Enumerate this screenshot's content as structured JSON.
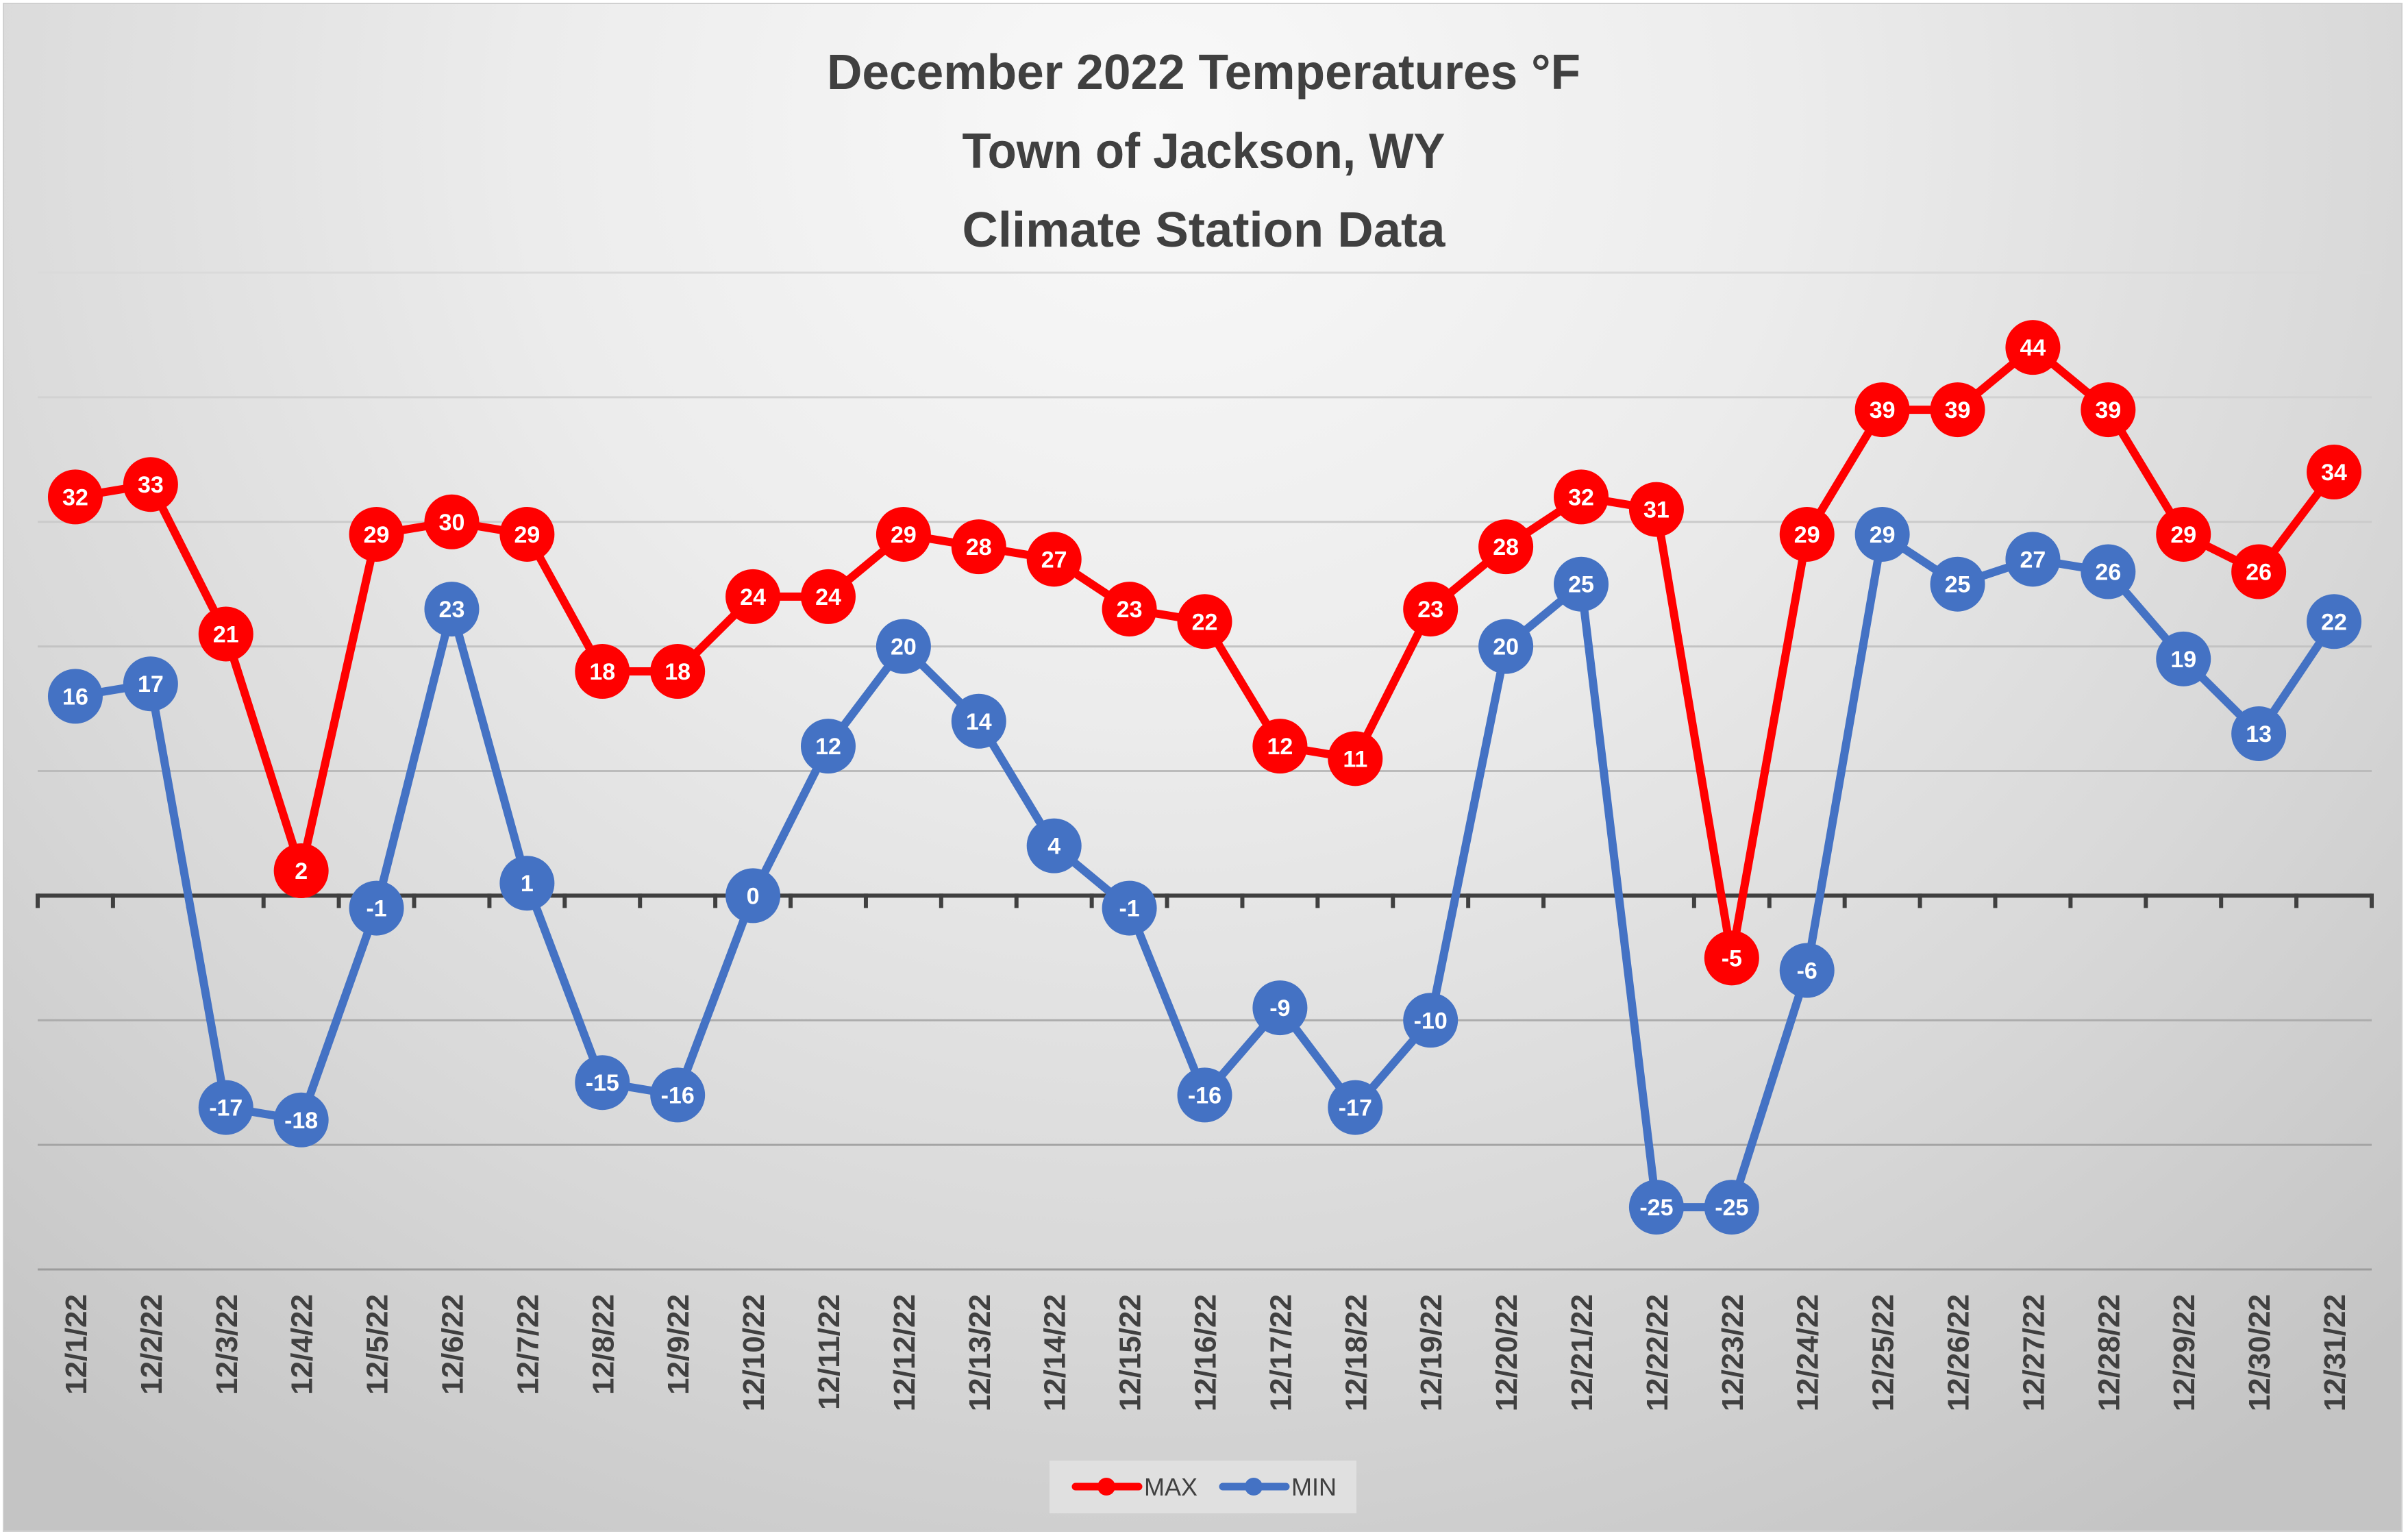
{
  "chart_data": {
    "type": "line",
    "title": [
      "December 2022 Temperatures °F",
      "Town of Jackson, WY",
      "Climate Station Data"
    ],
    "xlabel": "",
    "ylabel": "",
    "ylim": [
      -30,
      50
    ],
    "y_gridline_step": 10,
    "grid": true,
    "y_tick_labels_visible": false,
    "legend_position": "bottom",
    "categories": [
      "12/1/22",
      "12/2/22",
      "12/3/22",
      "12/4/22",
      "12/5/22",
      "12/6/22",
      "12/7/22",
      "12/8/22",
      "12/9/22",
      "12/10/22",
      "12/11/22",
      "12/12/22",
      "12/13/22",
      "12/14/22",
      "12/15/22",
      "12/16/22",
      "12/17/22",
      "12/18/22",
      "12/19/22",
      "12/20/22",
      "12/21/22",
      "12/22/22",
      "12/23/22",
      "12/24/22",
      "12/25/22",
      "12/26/22",
      "12/27/22",
      "12/28/22",
      "12/29/22",
      "12/30/22",
      "12/31/22"
    ],
    "series": [
      {
        "name": "MAX",
        "color": "#ff0000",
        "values": [
          32,
          33,
          21,
          2,
          29,
          30,
          29,
          18,
          18,
          24,
          24,
          29,
          28,
          27,
          23,
          22,
          12,
          11,
          23,
          28,
          32,
          31,
          -5,
          29,
          39,
          39,
          44,
          39,
          29,
          26,
          34
        ]
      },
      {
        "name": "MIN",
        "color": "#4472c4",
        "values": [
          16,
          17,
          -17,
          -18,
          -1,
          23,
          1,
          -15,
          -16,
          0,
          12,
          20,
          14,
          4,
          -1,
          -16,
          -9,
          -17,
          -10,
          20,
          25,
          -25,
          -25,
          -6,
          29,
          25,
          27,
          26,
          19,
          13,
          22
        ]
      }
    ],
    "data_labels": true
  }
}
